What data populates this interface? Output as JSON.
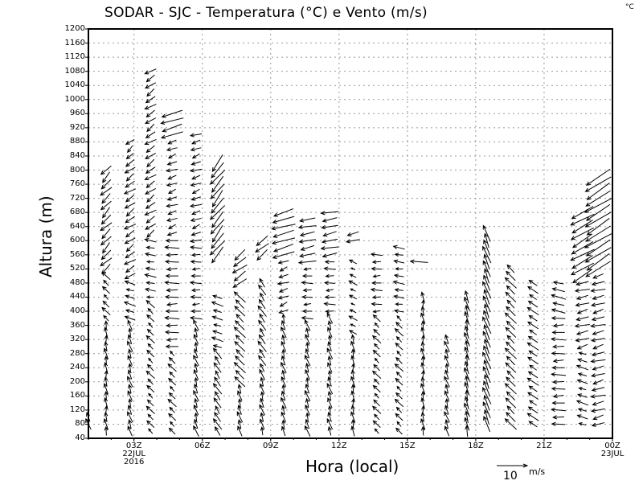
{
  "chart_data": {
    "type": "vector",
    "title": "SODAR - SJC - Temperatura (°C) e Vento (m/s)",
    "corner_unit": "°C",
    "xlabel": "Hora (local)",
    "ylabel": "Altura (m)",
    "ylim": [
      40,
      1200
    ],
    "yticks": [
      40,
      80,
      120,
      160,
      200,
      240,
      280,
      320,
      360,
      400,
      440,
      480,
      520,
      560,
      600,
      640,
      680,
      720,
      760,
      800,
      840,
      880,
      920,
      960,
      1000,
      1040,
      1080,
      1120,
      1160,
      1200
    ],
    "xlim_hours": [
      1,
      24
    ],
    "xticks": [
      {
        "hour": 3,
        "lines": [
          "03Z",
          "22JUL",
          "2016"
        ]
      },
      {
        "hour": 6,
        "lines": [
          "06Z"
        ]
      },
      {
        "hour": 9,
        "lines": [
          "09Z"
        ]
      },
      {
        "hour": 12,
        "lines": [
          "12Z"
        ]
      },
      {
        "hour": 15,
        "lines": [
          "15Z"
        ]
      },
      {
        "hour": 18,
        "lines": [
          "18Z"
        ]
      },
      {
        "hour": 21,
        "lines": [
          "21Z"
        ]
      },
      {
        "hour": 24,
        "lines": [
          "00Z",
          "23JUL"
        ]
      }
    ],
    "grid": true,
    "reference_vector": {
      "value": 10,
      "label": "10",
      "unit": "m/s"
    },
    "level_step_m": 20,
    "columns": [
      {
        "hour": 1.0,
        "segments": [
          [
            80,
            100,
            -1,
            3
          ]
        ]
      },
      {
        "hour": 1.78,
        "segments": [
          [
            520,
            800,
            -3,
            -3
          ],
          [
            380,
            500,
            -2,
            2
          ],
          [
            60,
            360,
            -0.5,
            3
          ]
        ]
      },
      {
        "hour": 2.83,
        "segments": [
          [
            840,
            880,
            -2,
            -2
          ],
          [
            500,
            820,
            -3,
            -2
          ],
          [
            380,
            480,
            -3,
            1
          ],
          [
            60,
            360,
            -1,
            3
          ]
        ]
      },
      {
        "hour": 3.73,
        "segments": [
          [
            620,
            1080,
            -3,
            -2
          ],
          [
            440,
            600,
            -3,
            0.5
          ],
          [
            60,
            420,
            -2,
            2
          ]
        ]
      },
      {
        "hour": 4.68,
        "segments": [
          [
            900,
            960,
            -7,
            -2
          ],
          [
            620,
            880,
            -3,
            -1
          ],
          [
            300,
            600,
            -4,
            0
          ],
          [
            60,
            280,
            -2,
            2
          ]
        ]
      },
      {
        "hour": 5.73,
        "segments": [
          [
            600,
            900,
            -3,
            -1
          ],
          [
            380,
            580,
            -3,
            0
          ],
          [
            60,
            360,
            -1,
            3
          ]
        ]
      },
      {
        "hour": 6.67,
        "segments": [
          [
            560,
            820,
            -4,
            -5
          ],
          [
            300,
            440,
            -3,
            1
          ],
          [
            60,
            280,
            -2,
            3
          ]
        ]
      },
      {
        "hour": 7.65,
        "segments": [
          [
            480,
            560,
            -4,
            -3
          ],
          [
            200,
            440,
            -3,
            3
          ],
          [
            60,
            180,
            -1,
            3
          ]
        ]
      },
      {
        "hour": 8.63,
        "segments": [
          [
            560,
            600,
            -4,
            -3
          ],
          [
            240,
            480,
            -2,
            3
          ],
          [
            60,
            220,
            -1,
            3
          ]
        ]
      },
      {
        "hour": 9.57,
        "segments": [
          [
            560,
            690,
            -7,
            -2
          ],
          [
            400,
            540,
            -3,
            -1
          ],
          [
            60,
            380,
            -1,
            3
          ]
        ]
      },
      {
        "hour": 10.62,
        "segments": [
          [
            540,
            660,
            -5,
            -1
          ],
          [
            380,
            520,
            -3,
            0
          ],
          [
            60,
            360,
            -1,
            3
          ]
        ]
      },
      {
        "hour": 11.6,
        "segments": [
          [
            560,
            680,
            -5,
            -1
          ],
          [
            400,
            540,
            -3,
            0
          ],
          [
            60,
            380,
            -1,
            3
          ]
        ]
      },
      {
        "hour": 12.62,
        "segments": [
          [
            600,
            620,
            -4,
            -1
          ],
          [
            340,
            540,
            -2,
            1
          ],
          [
            60,
            320,
            -0.5,
            3
          ]
        ]
      },
      {
        "hour": 13.66,
        "segments": [
          [
            400,
            560,
            -3,
            0
          ],
          [
            60,
            380,
            -2,
            2
          ]
        ]
      },
      {
        "hour": 14.64,
        "segments": [
          [
            400,
            590,
            -3,
            0.5
          ],
          [
            60,
            380,
            -2,
            2
          ]
        ]
      },
      {
        "hour": 15.52,
        "segments": [
          [
            540,
            540,
            -5,
            0
          ]
        ]
      },
      {
        "hour": 15.69,
        "segments": [
          [
            60,
            450,
            -0.5,
            3
          ]
        ]
      },
      {
        "hour": 16.74,
        "segments": [
          [
            60,
            330,
            -1,
            3
          ]
        ]
      },
      {
        "hour": 17.62,
        "segments": [
          [
            60,
            440,
            -1,
            4
          ]
        ]
      },
      {
        "hour": 18.49,
        "segments": [
          [
            80,
            620,
            -2,
            5
          ]
        ]
      },
      {
        "hour": 19.54,
        "segments": [
          [
            80,
            530,
            -3,
            3
          ]
        ]
      },
      {
        "hour": 20.52,
        "segments": [
          [
            80,
            480,
            -3,
            2
          ]
        ]
      },
      {
        "hour": 21.64,
        "segments": [
          [
            400,
            480,
            -4,
            1
          ],
          [
            80,
            380,
            -4,
            0
          ]
        ]
      },
      {
        "hour": 22.69,
        "segments": [
          [
            500,
            680,
            -7,
            -4
          ],
          [
            300,
            480,
            -4,
            -1
          ],
          [
            80,
            280,
            -3,
            1
          ]
        ]
      },
      {
        "hour": 23.38,
        "segments": [
          [
            520,
            780,
            -8,
            -5
          ],
          [
            80,
            500,
            -4,
            -1
          ]
        ]
      }
    ]
  }
}
